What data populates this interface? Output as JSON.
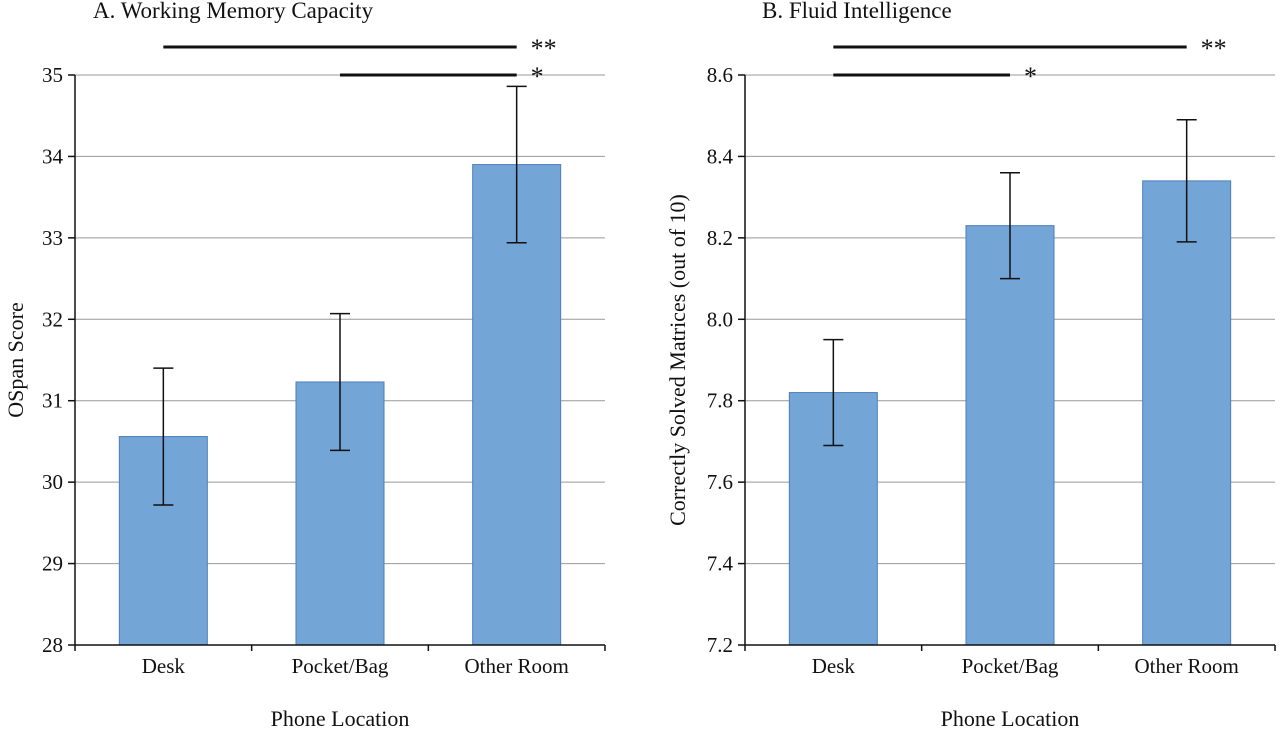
{
  "chart_style": {
    "background": "#ffffff",
    "bar_fill": "#73A5D6",
    "bar_stroke": "#4D7EBB",
    "grid_color": "#999999",
    "axis_color": "#111111"
  },
  "chart_data": [
    {
      "type": "bar",
      "title": "A. Working Memory Capacity",
      "xlabel": "Phone Location",
      "ylabel": "OSpan Score",
      "categories": [
        "Desk",
        "Pocket/Bag",
        "Other Room"
      ],
      "values": [
        30.56,
        31.23,
        33.9
      ],
      "errors": [
        0.84,
        0.84,
        0.96
      ],
      "ylim": [
        28,
        35
      ],
      "ytick_step": 1,
      "ytick_labels": [
        "28",
        "29",
        "30",
        "31",
        "32",
        "33",
        "34",
        "35"
      ],
      "grid": true,
      "significance": [
        {
          "label": "**",
          "from": "Desk",
          "to": "Other Room",
          "from_index": 0,
          "to_index": 2,
          "row": 0
        },
        {
          "label": "*",
          "from": "Pocket/Bag",
          "to": "Other Room",
          "from_index": 1,
          "to_index": 2,
          "row": 1
        }
      ]
    },
    {
      "type": "bar",
      "title": "B. Fluid Intelligence",
      "xlabel": "Phone Location",
      "ylabel": "Correctly Solved Matrices (out of 10)",
      "categories": [
        "Desk",
        "Pocket/Bag",
        "Other Room"
      ],
      "values": [
        7.82,
        8.23,
        8.34
      ],
      "errors": [
        0.13,
        0.13,
        0.15
      ],
      "ylim": [
        7.2,
        8.6
      ],
      "ytick_step": 0.2,
      "ytick_labels": [
        "7.2",
        "7.4",
        "7.6",
        "7.8",
        "8.0",
        "8.2",
        "8.4",
        "8.6"
      ],
      "grid": true,
      "significance": [
        {
          "label": "**",
          "from": "Desk",
          "to": "Other Room",
          "from_index": 0,
          "to_index": 2,
          "row": 0
        },
        {
          "label": "*",
          "from": "Desk",
          "to": "Pocket/Bag",
          "from_index": 0,
          "to_index": 1,
          "row": 1
        }
      ]
    }
  ]
}
